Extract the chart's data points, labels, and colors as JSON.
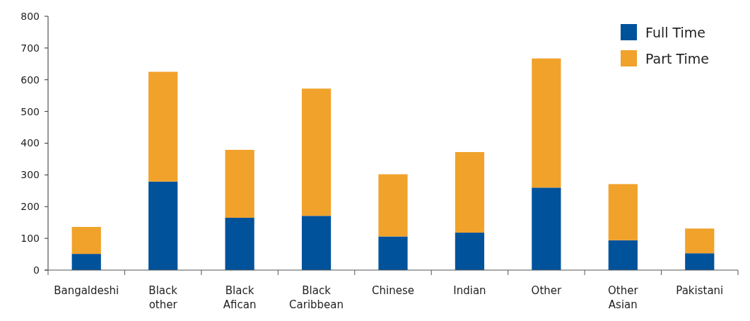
{
  "chart_data": {
    "type": "bar",
    "stacked": true,
    "categories": [
      "Bangaldeshi",
      "Black other",
      "Black Afican",
      "Black Caribbean",
      "Chinese",
      "Indian",
      "Other",
      "Other Asian",
      "Pakistani"
    ],
    "series": [
      {
        "name": "Full Time",
        "color": "#00529b",
        "values": [
          51,
          279,
          165,
          171,
          106,
          118,
          260,
          94,
          53
        ]
      },
      {
        "name": "Part Time",
        "color": "#f0a22b",
        "values": [
          85,
          346,
          214,
          401,
          196,
          254,
          407,
          177,
          78
        ]
      }
    ],
    "ylim": [
      0,
      800
    ],
    "yticks": [
      0,
      100,
      200,
      300,
      400,
      500,
      600,
      700,
      800
    ],
    "grid": false,
    "legend": "top right"
  }
}
